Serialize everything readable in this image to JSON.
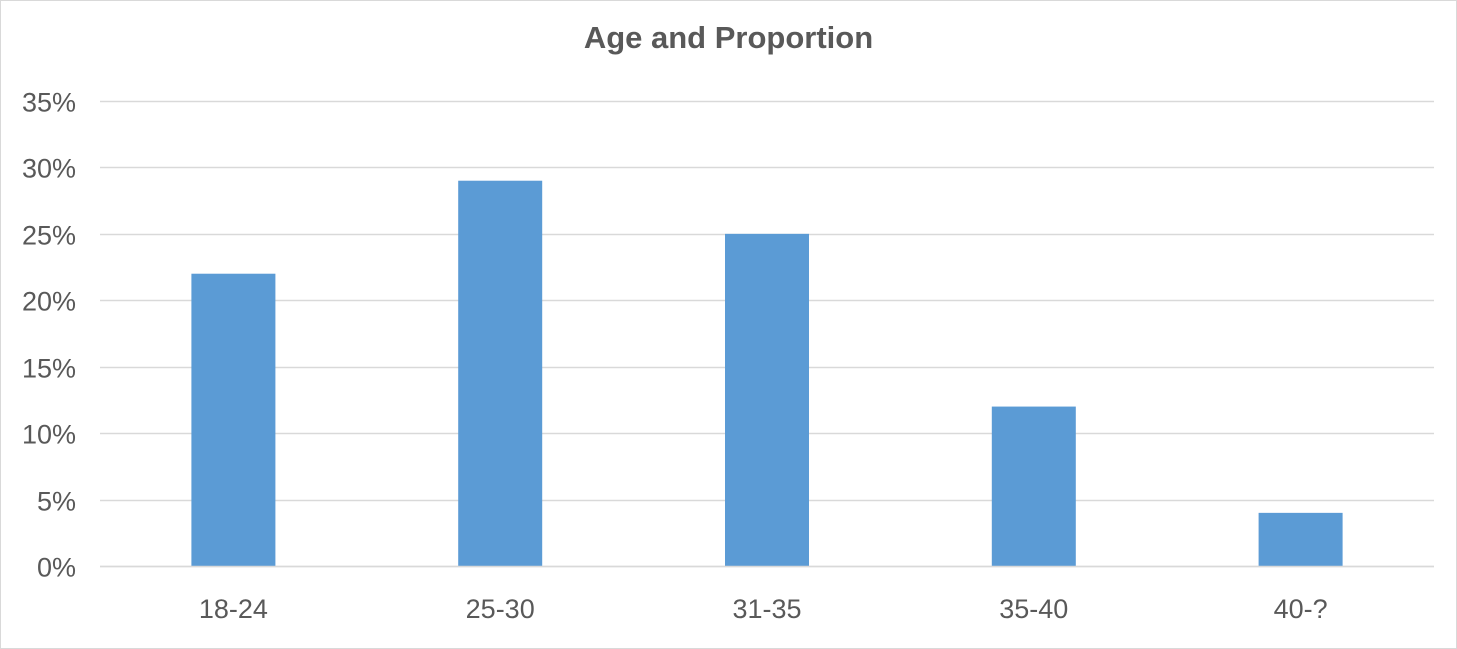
{
  "chart_data": {
    "type": "bar",
    "title": "Age and Proportion",
    "xlabel": "",
    "ylabel": "",
    "categories": [
      "18-24",
      "25-30",
      "31-35",
      "35-40",
      "40-?"
    ],
    "values": [
      0.22,
      0.29,
      0.25,
      0.12,
      0.04
    ],
    "ylim": [
      0,
      0.35
    ],
    "y_ticks": [
      0,
      0.05,
      0.1,
      0.15,
      0.2,
      0.25,
      0.3,
      0.35
    ],
    "y_tick_labels": [
      "0%",
      "5%",
      "10%",
      "15%",
      "20%",
      "25%",
      "30%",
      "35%"
    ],
    "grid": true,
    "legend": "none",
    "bar_color": "#5b9bd5",
    "grid_color": "#d9d9d9"
  }
}
